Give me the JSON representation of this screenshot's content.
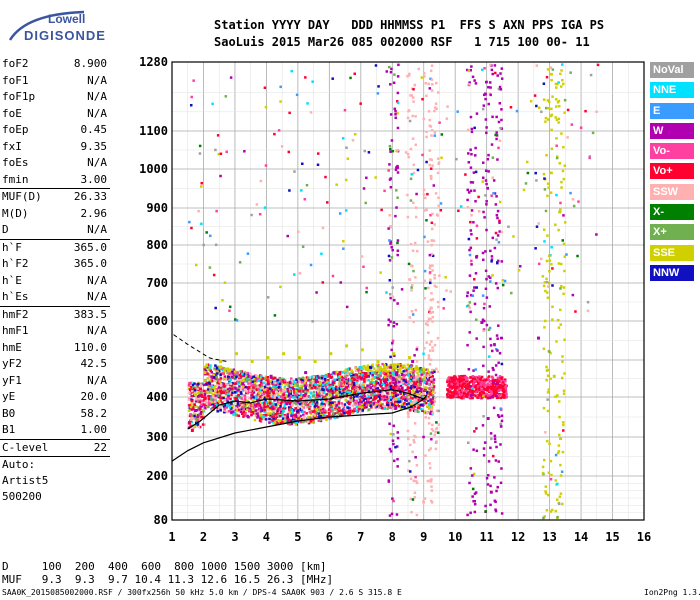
{
  "logo": {
    "top": "Lowell",
    "main": "DIGISONDE"
  },
  "header": {
    "line1": "Station YYYY DAY   DDD HHMMSS P1  FFS S AXN PPS IGA PS",
    "line2": "SaoLuis 2015 Mar26 085 002000 RSF   1 715 100 00- 11"
  },
  "params1": [
    {
      "name": "foF2",
      "value": "8.900"
    },
    {
      "name": "foF1",
      "value": "N/A"
    },
    {
      "name": "foF1p",
      "value": "N/A"
    },
    {
      "name": "foE",
      "value": "N/A"
    },
    {
      "name": "foEp",
      "value": "0.45"
    },
    {
      "name": "fxI",
      "value": "9.35"
    },
    {
      "name": "foEs",
      "value": "N/A"
    },
    {
      "name": "fmin",
      "value": "3.00"
    }
  ],
  "params2": [
    {
      "name": "MUF(D)",
      "value": "26.33"
    },
    {
      "name": "M(D)",
      "value": "2.96"
    },
    {
      "name": "D",
      "value": "N/A"
    }
  ],
  "params3": [
    {
      "name": "h`F",
      "value": "365.0"
    },
    {
      "name": "h`F2",
      "value": "365.0"
    },
    {
      "name": "h`E",
      "value": "N/A"
    },
    {
      "name": "h`Es",
      "value": "N/A"
    }
  ],
  "params4": [
    {
      "name": "hmF2",
      "value": "383.5"
    },
    {
      "name": "hmF1",
      "value": "N/A"
    },
    {
      "name": "hmE",
      "value": "110.0"
    },
    {
      "name": "yF2",
      "value": "42.5"
    },
    {
      "name": "yF1",
      "value": "N/A"
    },
    {
      "name": "yE",
      "value": "20.0"
    },
    {
      "name": "B0",
      "value": "58.2"
    },
    {
      "name": "B1",
      "value": "1.00"
    }
  ],
  "params5": [
    {
      "name": "C-level",
      "value": "22"
    }
  ],
  "auto_lines": [
    "Auto:",
    "Artist5",
    "500200"
  ],
  "legend": [
    {
      "label": "NoVal",
      "color": "#a0a0a0"
    },
    {
      "label": "NNE",
      "color": "#00e0ff"
    },
    {
      "label": "E",
      "color": "#3a9cff"
    },
    {
      "label": "W",
      "color": "#b000b0"
    },
    {
      "label": "Vo-",
      "color": "#ff40a0"
    },
    {
      "label": "Vo+",
      "color": "#ff0030"
    },
    {
      "label": "SSW",
      "color": "#ffb0b0"
    },
    {
      "label": "X-",
      "color": "#008000"
    },
    {
      "label": "X+",
      "color": "#70b050"
    },
    {
      "label": "SSE",
      "color": "#d0d000"
    },
    {
      "label": "NNW",
      "color": "#1010c0"
    }
  ],
  "footer": {
    "d_line": "D     100  200  400  600  800 1000 1500 3000 [km]",
    "muf_line": "MUF   9.3  9.3  9.7 10.4 11.3 12.6 16.5 26.3 [MHz]"
  },
  "footnote": {
    "left": "SAA0K_2015085002000.RSF / 300fx256h 50 kHz 5.0 km / DPS-4 SAA0K 903 / 2.6 S 315.8 E",
    "right": "Ion2Png 1.3.17"
  },
  "chart_data": {
    "type": "scatter",
    "title": "",
    "xlabel": "",
    "ylabel": "",
    "xlim": [
      1,
      16
    ],
    "ylim": [
      80,
      1280
    ],
    "x_ticks": [
      1,
      2,
      3,
      4,
      5,
      6,
      7,
      8,
      9,
      10,
      11,
      12,
      13,
      14,
      15,
      16
    ],
    "y_ticks": [
      80,
      200,
      300,
      400,
      500,
      600,
      700,
      800,
      900,
      1000,
      1100,
      1280
    ],
    "grid": true,
    "series": [
      {
        "name": "Vo+",
        "color": "#ff0030",
        "points": [
          [
            1.6,
            320
          ],
          [
            2.0,
            400
          ],
          [
            2.5,
            420
          ],
          [
            3.0,
            400
          ],
          [
            3.5,
            410
          ],
          [
            4.0,
            420
          ],
          [
            4.5,
            410
          ],
          [
            5.0,
            420
          ],
          [
            5.5,
            430
          ],
          [
            6.0,
            420
          ],
          [
            6.5,
            430
          ],
          [
            7.0,
            420
          ],
          [
            7.5,
            420
          ],
          [
            8.0,
            430
          ],
          [
            8.5,
            420
          ],
          [
            9.0,
            400
          ],
          [
            10.0,
            430
          ],
          [
            10.5,
            420
          ],
          [
            11.0,
            430
          ],
          [
            11.5,
            420
          ]
        ]
      },
      {
        "name": "SSE",
        "color": "#d0d000",
        "points": [
          [
            2.0,
            470
          ],
          [
            2.5,
            500
          ],
          [
            3.0,
            520
          ],
          [
            3.5,
            500
          ],
          [
            4.0,
            510
          ],
          [
            4.5,
            520
          ],
          [
            5.0,
            510
          ],
          [
            5.5,
            500
          ],
          [
            6.0,
            520
          ],
          [
            6.5,
            540
          ],
          [
            7.0,
            530
          ],
          [
            7.5,
            500
          ],
          [
            8.0,
            520
          ],
          [
            8.5,
            510
          ],
          [
            13.1,
            460
          ],
          [
            13.3,
            300
          ]
        ]
      },
      {
        "name": "W",
        "color": "#b000b0",
        "points": [
          [
            1.7,
            370
          ],
          [
            2.3,
            380
          ],
          [
            3.2,
            440
          ],
          [
            4.1,
            460
          ],
          [
            5.2,
            470
          ],
          [
            6.1,
            470
          ],
          [
            7.2,
            460
          ],
          [
            8.1,
            470
          ],
          [
            8.6,
            500
          ],
          [
            9.1,
            450
          ],
          [
            10.8,
            600
          ],
          [
            11.0,
            350
          ],
          [
            11.1,
            160
          ],
          [
            12.6,
            560
          ]
        ]
      }
    ]
  }
}
